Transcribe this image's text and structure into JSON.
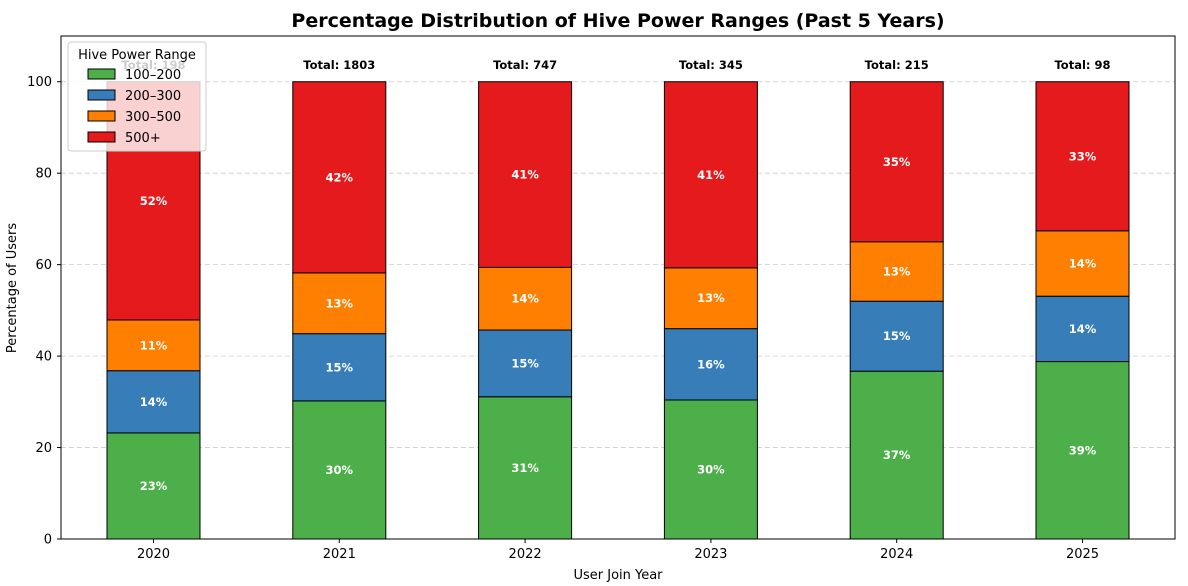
{
  "chart_data": {
    "type": "bar",
    "stacked": true,
    "title": "Percentage Distribution of Hive Power Ranges (Past 5 Years)",
    "xlabel": "User Join Year",
    "ylabel": "Percentage of Users",
    "ylim": [
      0,
      110
    ],
    "yticks": [
      0,
      20,
      40,
      60,
      80,
      100
    ],
    "grid": "horizontal dashed",
    "categories": [
      "2020",
      "2021",
      "2022",
      "2023",
      "2024",
      "2025"
    ],
    "totals": [
      "Total: 198",
      "Total: 1803",
      "Total: 747",
      "Total: 345",
      "Total: 215",
      "Total: 98"
    ],
    "legend_title": "Hive Power Range",
    "legend_position": "upper-left",
    "series": [
      {
        "name": "100–200",
        "color": "#4daf4a",
        "values": [
          23.2,
          30.2,
          31.1,
          30.4,
          36.7,
          38.8
        ],
        "labels": [
          "23%",
          "30%",
          "31%",
          "30%",
          "37%",
          "39%"
        ]
      },
      {
        "name": "200–300",
        "color": "#377eb8",
        "values": [
          13.6,
          14.7,
          14.6,
          15.6,
          15.3,
          14.3
        ],
        "labels": [
          "14%",
          "15%",
          "15%",
          "16%",
          "15%",
          "14%"
        ]
      },
      {
        "name": "300–500",
        "color": "#ff7f00",
        "values": [
          11.1,
          13.3,
          13.7,
          13.3,
          13.0,
          14.3
        ],
        "labels": [
          "11%",
          "13%",
          "14%",
          "13%",
          "13%",
          "14%"
        ]
      },
      {
        "name": "500+",
        "color": "#e41a1c",
        "values": [
          52.1,
          41.8,
          40.6,
          40.7,
          35.0,
          32.6
        ],
        "labels": [
          "52%",
          "42%",
          "41%",
          "41%",
          "35%",
          "33%"
        ]
      }
    ]
  }
}
